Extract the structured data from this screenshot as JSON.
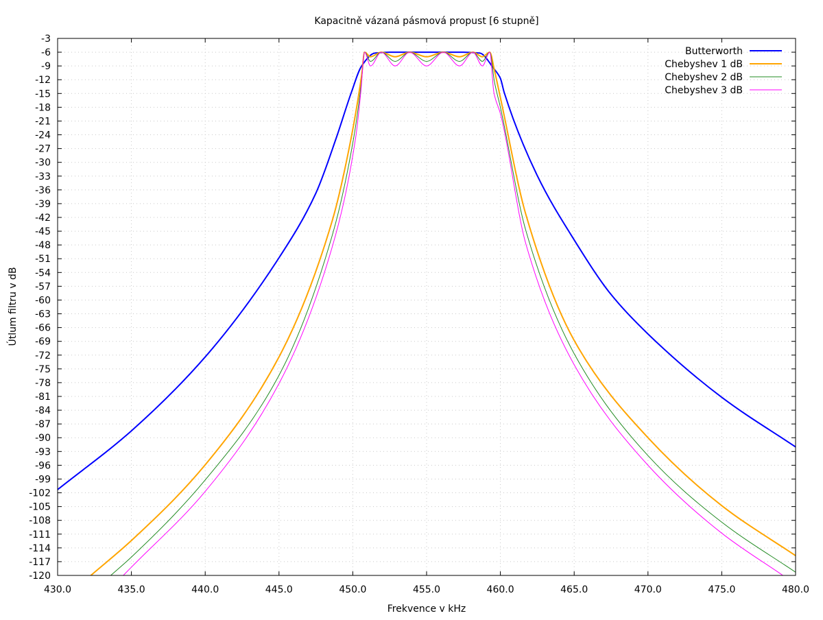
{
  "chart_data": {
    "type": "line",
    "title": "Kapacitně vázaná pásmová propust [6 stupně]",
    "xlabel": "Frekvence v kHz",
    "ylabel": "Útlum filtru v dB",
    "xlim": [
      430,
      480
    ],
    "ylim": [
      -120,
      -3
    ],
    "grid": true,
    "legend_position": "top-right",
    "x_ticks": [
      "430.0",
      "435.0",
      "440.0",
      "445.0",
      "450.0",
      "455.0",
      "460.0",
      "465.0",
      "470.0",
      "475.0",
      "480.0"
    ],
    "x_tick_values": [
      430,
      435,
      440,
      445,
      450,
      455,
      460,
      465,
      470,
      475,
      480
    ],
    "y_ticks": [
      "-3",
      "-6",
      "-9",
      "-12",
      "-15",
      "-18",
      "-21",
      "-24",
      "-27",
      "-30",
      "-33",
      "-36",
      "-39",
      "-42",
      "-45",
      "-48",
      "-51",
      "-54",
      "-57",
      "-60",
      "-63",
      "-66",
      "-69",
      "-72",
      "-75",
      "-78",
      "-81",
      "-84",
      "-87",
      "-90",
      "-93",
      "-96",
      "-99",
      "-102",
      "-105",
      "-108",
      "-111",
      "-114",
      "-117",
      "-120"
    ],
    "y_tick_values": [
      -3,
      -6,
      -9,
      -12,
      -15,
      -18,
      -21,
      -24,
      -27,
      -30,
      -33,
      -36,
      -39,
      -42,
      -45,
      -48,
      -51,
      -54,
      -57,
      -60,
      -63,
      -66,
      -69,
      -72,
      -75,
      -78,
      -81,
      -84,
      -87,
      -90,
      -93,
      -96,
      -99,
      -102,
      -105,
      -108,
      -111,
      -114,
      -117,
      -120
    ],
    "series": [
      {
        "name": "Butterworth",
        "color": "#0000ff",
        "width": 2,
        "points": [
          [
            430,
            -101.3
          ],
          [
            435,
            -88.5
          ],
          [
            440,
            -72.4
          ],
          [
            445,
            -50.8
          ],
          [
            447.5,
            -36.7
          ],
          [
            448.9,
            -24.5
          ],
          [
            449.9,
            -14.8
          ],
          [
            450.6,
            -9
          ],
          [
            451.5,
            -6.2
          ],
          [
            452.5,
            -6
          ],
          [
            455,
            -6
          ],
          [
            457.5,
            -6
          ],
          [
            458.6,
            -6.2
          ],
          [
            459.56,
            -9.6
          ],
          [
            460,
            -11.7
          ],
          [
            460.26,
            -14.8
          ],
          [
            462.5,
            -32.9
          ],
          [
            465,
            -46.9
          ],
          [
            467.5,
            -58.8
          ],
          [
            470,
            -67.4
          ],
          [
            475,
            -81.2
          ],
          [
            480,
            -92
          ]
        ]
      },
      {
        "name": "Chebyshev 1 dB",
        "color": "#ffa500",
        "width": 2,
        "points": [
          [
            432.25,
            -120
          ],
          [
            435,
            -112.4
          ],
          [
            440,
            -95.9
          ],
          [
            445,
            -72.4
          ],
          [
            448.6,
            -42.8
          ],
          [
            449.9,
            -24.5
          ],
          [
            450.6,
            -11
          ],
          [
            450.8,
            -6
          ],
          [
            451.2,
            -7
          ],
          [
            451.93,
            -6
          ],
          [
            452.87,
            -7
          ],
          [
            453.85,
            -6
          ],
          [
            455,
            -7
          ],
          [
            456.14,
            -6
          ],
          [
            457.23,
            -7
          ],
          [
            458.15,
            -6
          ],
          [
            458.78,
            -7
          ],
          [
            459.28,
            -6
          ],
          [
            459.6,
            -10
          ],
          [
            460,
            -15.9
          ],
          [
            461.72,
            -41.3
          ],
          [
            465,
            -68.8
          ],
          [
            470,
            -90
          ],
          [
            475,
            -104.8
          ],
          [
            480,
            -115.7
          ]
        ]
      },
      {
        "name": "Chebyshev 2 dB",
        "color": "#228b22",
        "width": 1,
        "points": [
          [
            433.6,
            -120
          ],
          [
            435,
            -116
          ],
          [
            440,
            -99.2
          ],
          [
            445,
            -76.4
          ],
          [
            448.6,
            -46
          ],
          [
            450.07,
            -24.5
          ],
          [
            450.57,
            -13
          ],
          [
            450.8,
            -6
          ],
          [
            451.2,
            -8
          ],
          [
            451.93,
            -6
          ],
          [
            452.87,
            -8
          ],
          [
            453.85,
            -6
          ],
          [
            455,
            -8
          ],
          [
            456.14,
            -6
          ],
          [
            457.23,
            -8
          ],
          [
            458.15,
            -6
          ],
          [
            458.78,
            -8
          ],
          [
            459.28,
            -6
          ],
          [
            459.6,
            -12.5
          ],
          [
            460,
            -18
          ],
          [
            461.72,
            -44.8
          ],
          [
            465,
            -71.7
          ],
          [
            470,
            -93.9
          ],
          [
            475,
            -108.4
          ],
          [
            480,
            -119.3
          ]
        ]
      },
      {
        "name": "Chebyshev 3 dB",
        "color": "#ff00ff",
        "width": 1,
        "points": [
          [
            434.45,
            -120
          ],
          [
            435,
            -118.2
          ],
          [
            440,
            -101.7
          ],
          [
            445,
            -78.2
          ],
          [
            448.6,
            -48.5
          ],
          [
            450.2,
            -24.5
          ],
          [
            450.54,
            -14.8
          ],
          [
            450.8,
            -6
          ],
          [
            451.2,
            -9
          ],
          [
            451.93,
            -6
          ],
          [
            452.87,
            -9
          ],
          [
            453.85,
            -6
          ],
          [
            455,
            -9
          ],
          [
            456.14,
            -6
          ],
          [
            457.23,
            -9
          ],
          [
            458.15,
            -6
          ],
          [
            458.78,
            -9
          ],
          [
            459.28,
            -6
          ],
          [
            459.56,
            -14.8
          ],
          [
            460,
            -19.4
          ],
          [
            461.72,
            -47.7
          ],
          [
            465,
            -74.1
          ],
          [
            470,
            -96
          ],
          [
            475,
            -110.8
          ],
          [
            479.14,
            -120
          ]
        ]
      }
    ]
  }
}
